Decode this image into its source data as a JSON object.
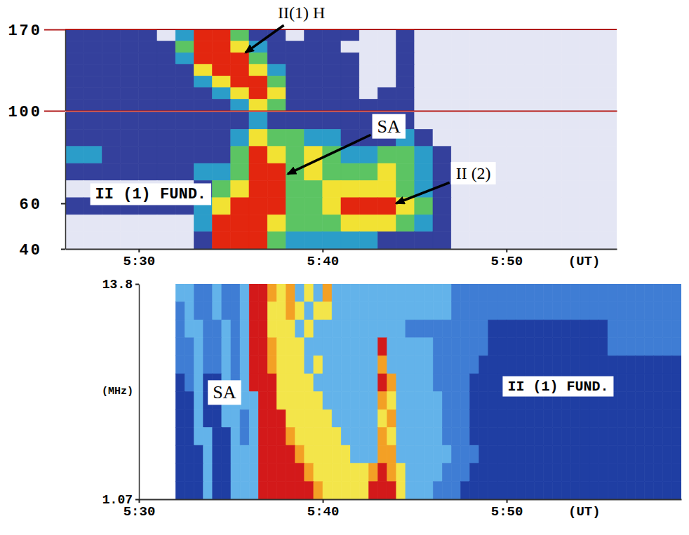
{
  "chart_data": [
    {
      "type": "heatmap",
      "xlim": [
        26,
        56
      ],
      "ylim": [
        100,
        170
      ],
      "yticks": [
        170,
        100
      ],
      "tick_labels": "y",
      "x": [
        26,
        27,
        28,
        29,
        30,
        31,
        32,
        33,
        34,
        35,
        36,
        37,
        38,
        39,
        40,
        41,
        42,
        43,
        44,
        45,
        46,
        47,
        48,
        49,
        50,
        51,
        52,
        53,
        54,
        55,
        56
      ],
      "y": [
        170,
        160,
        150,
        140,
        130,
        120,
        110,
        100
      ],
      "z": [
        [
          1,
          1,
          1,
          1,
          1,
          0,
          2,
          5,
          5,
          3,
          1,
          1,
          0,
          1,
          1,
          1,
          0,
          0,
          1,
          0,
          0,
          0,
          0,
          0,
          0,
          0,
          0,
          0,
          0,
          0
        ],
        [
          1,
          1,
          1,
          1,
          1,
          1,
          3,
          5,
          5,
          4,
          2,
          1,
          1,
          1,
          1,
          0,
          0,
          0,
          1,
          0,
          0,
          0,
          0,
          0,
          0,
          0,
          0,
          0,
          0,
          0
        ],
        [
          1,
          1,
          1,
          1,
          1,
          1,
          2,
          5,
          5,
          5,
          3,
          1,
          1,
          1,
          1,
          1,
          0,
          0,
          1,
          0,
          0,
          0,
          0,
          0,
          0,
          0,
          0,
          0,
          0,
          0
        ],
        [
          1,
          1,
          1,
          1,
          1,
          1,
          1,
          4,
          5,
          5,
          4,
          2,
          1,
          1,
          1,
          1,
          0,
          0,
          1,
          0,
          0,
          0,
          0,
          0,
          0,
          0,
          0,
          0,
          0,
          0
        ],
        [
          1,
          1,
          1,
          1,
          1,
          1,
          1,
          2,
          4,
          5,
          5,
          3,
          1,
          1,
          1,
          1,
          0,
          0,
          1,
          0,
          0,
          0,
          0,
          0,
          0,
          0,
          0,
          0,
          0,
          0
        ],
        [
          1,
          1,
          1,
          1,
          1,
          1,
          1,
          1,
          2,
          4,
          5,
          4,
          1,
          1,
          1,
          1,
          0,
          1,
          1,
          0,
          0,
          0,
          0,
          0,
          0,
          0,
          0,
          0,
          0,
          0
        ],
        [
          1,
          1,
          1,
          1,
          1,
          1,
          1,
          1,
          1,
          2,
          4,
          3,
          1,
          1,
          1,
          1,
          1,
          1,
          1,
          0,
          0,
          0,
          0,
          0,
          0,
          0,
          0,
          0,
          0,
          0
        ]
      ],
      "colors": [
        "#e4e6f4",
        "#34409c",
        "#2b9dc9",
        "#5cc463",
        "#f2e233",
        "#e3260f"
      ],
      "annotations": [
        {
          "text": "II(1) H",
          "x": 38.85,
          "y": 184.5,
          "arrow_x": 35.8,
          "arrow_y": 150
        }
      ]
    },
    {
      "type": "heatmap",
      "xlim": [
        26,
        56
      ],
      "ylim": [
        40,
        100
      ],
      "xticks": [
        {
          "value": 30,
          "label": "5:30"
        },
        {
          "value": 40,
          "label": "5:40"
        },
        {
          "value": 50,
          "label": "5:50"
        }
      ],
      "yticks": [
        60,
        40
      ],
      "xlabel": "(UT)",
      "x": [
        26,
        27,
        28,
        29,
        30,
        31,
        32,
        33,
        34,
        35,
        36,
        37,
        38,
        39,
        40,
        41,
        42,
        43,
        44,
        45,
        46,
        47,
        48,
        49,
        50,
        51,
        52,
        53,
        54,
        55,
        56
      ],
      "y": [
        100,
        92.5,
        85,
        77.5,
        70,
        62.5,
        55,
        47.5,
        40
      ],
      "z": [
        [
          1,
          1,
          1,
          1,
          1,
          1,
          1,
          1,
          1,
          1,
          2,
          1,
          1,
          1,
          1,
          1,
          1,
          1,
          1,
          0,
          0,
          0,
          0,
          0,
          0,
          0,
          0,
          0,
          0,
          0
        ],
        [
          1,
          1,
          1,
          1,
          1,
          1,
          1,
          1,
          1,
          2,
          4,
          3,
          3,
          2,
          2,
          1,
          1,
          1,
          2,
          1,
          0,
          0,
          0,
          0,
          0,
          0,
          0,
          0,
          0,
          0
        ],
        [
          2,
          2,
          1,
          1,
          1,
          1,
          1,
          1,
          1,
          3,
          5,
          4,
          3,
          4,
          3,
          2,
          2,
          3,
          3,
          2,
          1,
          0,
          0,
          0,
          0,
          0,
          0,
          0,
          0,
          0
        ],
        [
          1,
          1,
          1,
          1,
          1,
          1,
          1,
          2,
          2,
          3,
          5,
          5,
          3,
          4,
          3,
          3,
          3,
          4,
          3,
          2,
          1,
          0,
          0,
          0,
          0,
          0,
          0,
          0,
          0,
          0
        ],
        [
          0,
          0,
          0,
          0,
          0,
          0,
          0,
          1,
          3,
          4,
          5,
          5,
          3,
          3,
          4,
          4,
          4,
          4,
          3,
          2,
          1,
          0,
          0,
          0,
          0,
          0,
          0,
          0,
          0,
          0
        ],
        [
          1,
          1,
          1,
          1,
          1,
          1,
          1,
          2,
          4,
          5,
          5,
          5,
          3,
          3,
          4,
          5,
          5,
          5,
          4,
          3,
          1,
          0,
          0,
          0,
          0,
          0,
          0,
          0,
          0,
          0
        ],
        [
          0,
          0,
          0,
          0,
          0,
          0,
          0,
          2,
          5,
          5,
          5,
          4,
          3,
          3,
          3,
          4,
          4,
          4,
          3,
          2,
          1,
          0,
          0,
          0,
          0,
          0,
          0,
          0,
          0,
          0
        ],
        [
          0,
          0,
          0,
          0,
          0,
          0,
          0,
          1,
          5,
          5,
          5,
          3,
          2,
          2,
          2,
          2,
          2,
          1,
          1,
          1,
          1,
          0,
          0,
          0,
          0,
          0,
          0,
          0,
          0,
          0
        ]
      ],
      "colors": [
        "#e4e6f4",
        "#34409c",
        "#2b9dc9",
        "#5cc463",
        "#f2e233",
        "#e3260f"
      ],
      "annotations": [
        {
          "text": "SA",
          "x": 43.6,
          "y": 93.8,
          "arrow_x": 38.1,
          "arrow_y": 72.9
        },
        {
          "text": "II (2)",
          "x": 48.2,
          "y": 73.2,
          "arrow_x": 44.0,
          "arrow_y": 60
        },
        {
          "text": "II (1) FUND.",
          "x": 30.65,
          "y": 64
        }
      ]
    },
    {
      "type": "heatmap",
      "log": "y",
      "xlim": [
        30,
        59.5
      ],
      "ylim": [
        1.07,
        13.8
      ],
      "xticks": [
        {
          "value": 30,
          "label": "5:30"
        },
        {
          "value": 40,
          "label": "5:40"
        },
        {
          "value": 50,
          "label": "5:50"
        }
      ],
      "yticks": [
        13.8,
        1.07
      ],
      "xlabel": "(UT)",
      "ylabel": "(MHz)",
      "x": [
        32,
        32.5,
        33,
        33.5,
        34,
        34.5,
        35,
        35.5,
        36,
        36.5,
        37,
        37.5,
        38,
        38.5,
        39,
        39.5,
        40,
        40.5,
        41,
        41.5,
        42,
        42.5,
        43,
        43.5,
        44,
        44.5,
        45,
        45.5,
        46,
        46.5,
        47,
        47.5,
        48,
        48.5,
        49,
        49.5,
        50,
        50.5,
        51,
        51.5,
        52,
        52.5,
        53,
        53.5,
        54,
        54.5,
        55,
        55.5,
        56,
        56.5,
        57,
        57.5,
        58,
        58.5,
        59,
        59.5
      ],
      "y": [
        13.8,
        11.15,
        9.01,
        7.28,
        5.88,
        4.75,
        3.84,
        3.1,
        2.51,
        2.03,
        1.64,
        1.32,
        1.07
      ],
      "z": [
        [
          2,
          2,
          1,
          1,
          2,
          1,
          1,
          2,
          5,
          5,
          4,
          3,
          4,
          2,
          3,
          2,
          4,
          2,
          2,
          2,
          2,
          2,
          2,
          2,
          2,
          2,
          2,
          2,
          2,
          2,
          1,
          1,
          1,
          1,
          1,
          1,
          1,
          1,
          1,
          1,
          1,
          1,
          1,
          1,
          1,
          1,
          1,
          1,
          1,
          1,
          1,
          1,
          1,
          1,
          1
        ],
        [
          1,
          2,
          1,
          1,
          2,
          1,
          1,
          2,
          5,
          5,
          3,
          3,
          4,
          3,
          2,
          3,
          3,
          2,
          2,
          2,
          2,
          2,
          2,
          2,
          2,
          2,
          2,
          2,
          2,
          2,
          1,
          1,
          1,
          1,
          1,
          1,
          1,
          1,
          1,
          1,
          1,
          1,
          1,
          1,
          1,
          1,
          1,
          1,
          1,
          1,
          1,
          1,
          1,
          1,
          1
        ],
        [
          1,
          2,
          2,
          1,
          1,
          2,
          1,
          2,
          5,
          5,
          3,
          3,
          3,
          2,
          3,
          2,
          2,
          2,
          2,
          2,
          2,
          2,
          2,
          2,
          2,
          1,
          1,
          1,
          1,
          1,
          1,
          1,
          1,
          1,
          0,
          0,
          0,
          0,
          0,
          0,
          0,
          0,
          0,
          0,
          0,
          0,
          0,
          1,
          1,
          1,
          1,
          1,
          1,
          1,
          1
        ],
        [
          1,
          1,
          2,
          1,
          1,
          2,
          1,
          2,
          5,
          5,
          4,
          3,
          3,
          3,
          2,
          2,
          2,
          2,
          2,
          2,
          2,
          2,
          5,
          2,
          2,
          2,
          2,
          2,
          1,
          1,
          1,
          1,
          1,
          1,
          0,
          0,
          0,
          0,
          0,
          0,
          0,
          0,
          0,
          0,
          0,
          0,
          0,
          1,
          1,
          1,
          1,
          1,
          1,
          1,
          1
        ],
        [
          1,
          1,
          2,
          1,
          1,
          2,
          1,
          2,
          5,
          5,
          4,
          3,
          3,
          3,
          2,
          3,
          2,
          2,
          2,
          2,
          2,
          2,
          4,
          2,
          2,
          2,
          2,
          2,
          1,
          1,
          1,
          1,
          1,
          0,
          0,
          0,
          0,
          0,
          0,
          0,
          0,
          0,
          0,
          0,
          0,
          0,
          0,
          0,
          0,
          0,
          0,
          0,
          0,
          0,
          0
        ],
        [
          0,
          1,
          2,
          0,
          0,
          2,
          1,
          2,
          5,
          5,
          5,
          3,
          3,
          3,
          3,
          2,
          2,
          2,
          2,
          2,
          2,
          2,
          5,
          4,
          2,
          2,
          2,
          2,
          1,
          1,
          1,
          1,
          0,
          0,
          0,
          0,
          0,
          0,
          0,
          0,
          0,
          0,
          0,
          0,
          0,
          0,
          0,
          0,
          0,
          0,
          0,
          0,
          0,
          0,
          0
        ],
        [
          0,
          0,
          2,
          0,
          0,
          2,
          2,
          2,
          2,
          5,
          5,
          3,
          3,
          3,
          3,
          3,
          2,
          2,
          2,
          2,
          2,
          2,
          4,
          3,
          2,
          2,
          2,
          2,
          2,
          1,
          1,
          1,
          0,
          0,
          0,
          0,
          0,
          0,
          0,
          0,
          0,
          0,
          0,
          0,
          0,
          0,
          0,
          0,
          0,
          0,
          0,
          0,
          0,
          0,
          0
        ],
        [
          0,
          0,
          2,
          0,
          0,
          2,
          2,
          1,
          2,
          5,
          5,
          5,
          3,
          3,
          3,
          3,
          3,
          2,
          2,
          2,
          2,
          2,
          3,
          4,
          2,
          2,
          2,
          2,
          2,
          1,
          1,
          1,
          0,
          0,
          0,
          0,
          0,
          0,
          0,
          0,
          0,
          0,
          0,
          0,
          0,
          0,
          0,
          0,
          0,
          0,
          0,
          0,
          0,
          0,
          0
        ],
        [
          0,
          0,
          2,
          2,
          0,
          0,
          2,
          1,
          2,
          5,
          5,
          5,
          4,
          3,
          3,
          3,
          3,
          3,
          2,
          2,
          2,
          2,
          4,
          3,
          2,
          2,
          2,
          2,
          2,
          1,
          1,
          1,
          0,
          0,
          0,
          0,
          0,
          0,
          0,
          0,
          0,
          0,
          0,
          0,
          0,
          0,
          0,
          0,
          0,
          0,
          0,
          0,
          0,
          0,
          0
        ],
        [
          0,
          0,
          0,
          2,
          0,
          0,
          2,
          2,
          2,
          5,
          5,
          5,
          5,
          4,
          3,
          3,
          3,
          3,
          3,
          2,
          2,
          2,
          4,
          4,
          2,
          2,
          2,
          2,
          2,
          2,
          1,
          1,
          1,
          0,
          0,
          0,
          0,
          0,
          0,
          0,
          0,
          0,
          0,
          0,
          0,
          0,
          0,
          0,
          0,
          0,
          0,
          0,
          0,
          0,
          0
        ],
        [
          0,
          0,
          0,
          2,
          0,
          0,
          2,
          2,
          2,
          5,
          5,
          5,
          5,
          5,
          4,
          3,
          3,
          3,
          3,
          3,
          3,
          4,
          5,
          4,
          3,
          2,
          2,
          2,
          2,
          1,
          1,
          1,
          0,
          0,
          0,
          0,
          0,
          0,
          0,
          0,
          0,
          0,
          0,
          0,
          0,
          0,
          0,
          0,
          0,
          0,
          0,
          0,
          0,
          0,
          0
        ],
        [
          0,
          0,
          0,
          2,
          0,
          0,
          2,
          2,
          2,
          5,
          5,
          5,
          5,
          5,
          5,
          4,
          3,
          3,
          3,
          3,
          3,
          5,
          5,
          5,
          3,
          2,
          2,
          2,
          1,
          1,
          1,
          0,
          0,
          0,
          0,
          0,
          0,
          0,
          0,
          0,
          0,
          0,
          0,
          0,
          0,
          0,
          0,
          0,
          0,
          0,
          0,
          0,
          0,
          0,
          0
        ]
      ],
      "colors": [
        "#1f3ea3",
        "#3f7dd4",
        "#63b3ea",
        "#f3e54a",
        "#f3a025",
        "#d3191a"
      ],
      "annotations": [
        {
          "text": "SA",
          "x": 34.65,
          "y": 3.8
        },
        {
          "text": "II (1) FUND.",
          "x": 52.8,
          "y": 4.09
        }
      ]
    }
  ]
}
